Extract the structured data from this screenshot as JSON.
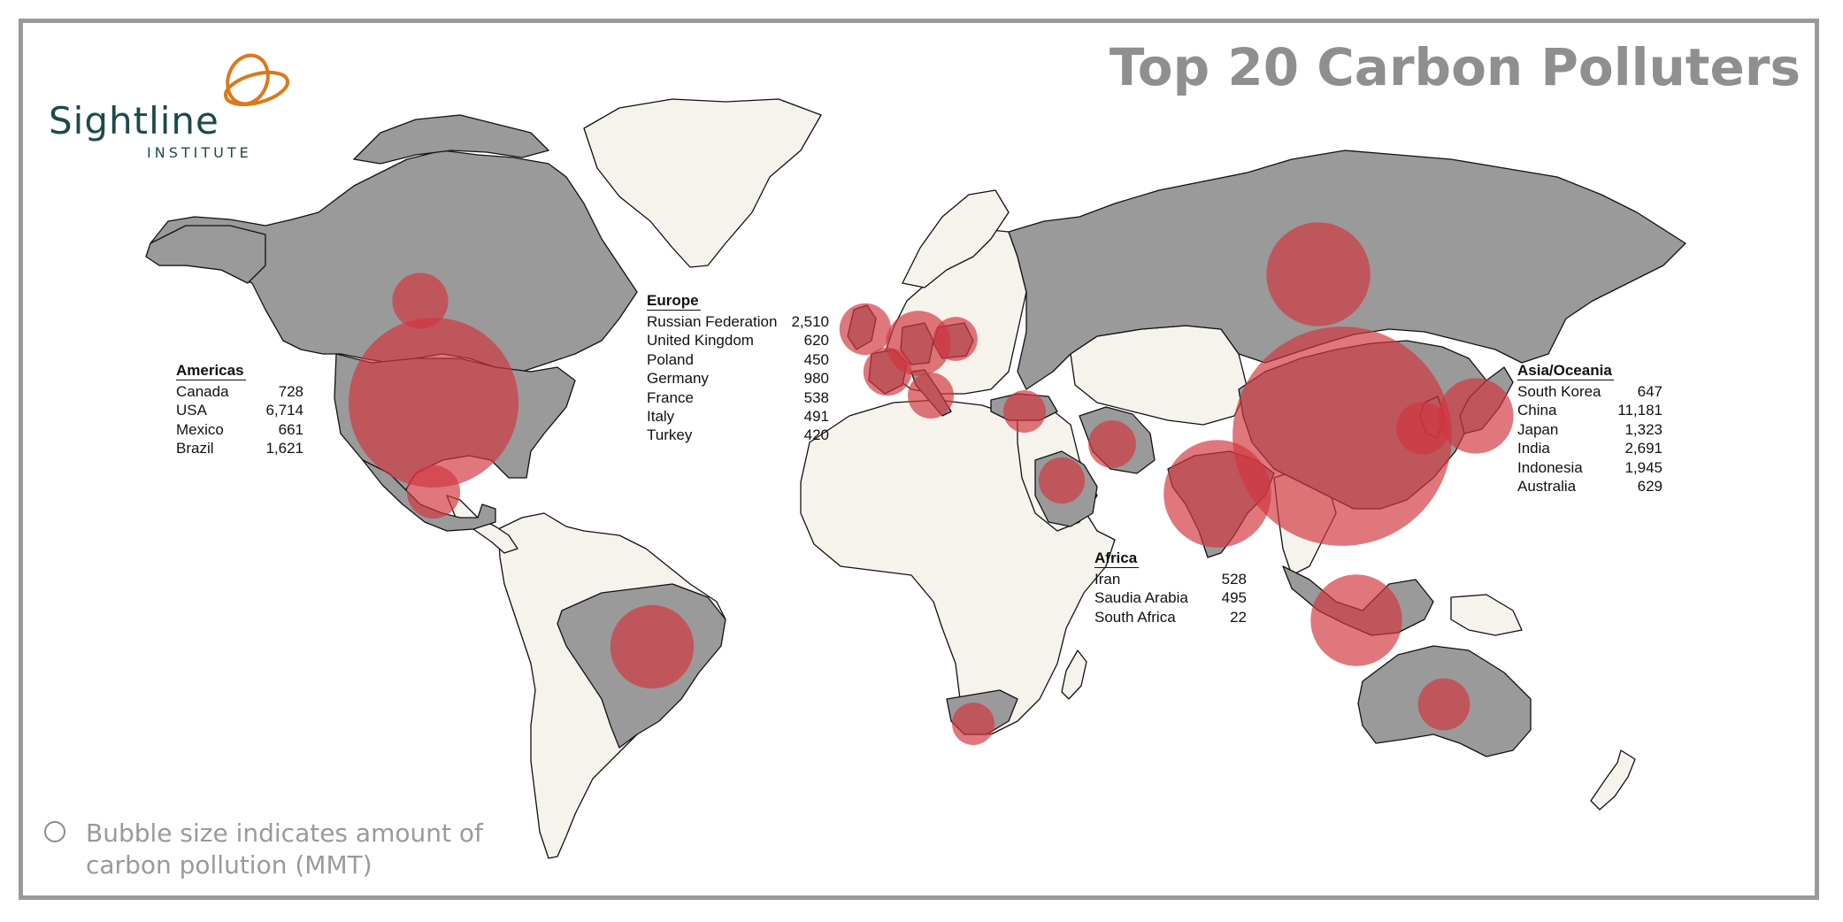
{
  "title": "Top 20 Carbon Polluters",
  "logo": {
    "name": "Sightline",
    "sub": "INSTITUTE",
    "colors": {
      "text": "#1d4a4a",
      "mark": "#d97a1c"
    }
  },
  "legend_text": "Bubble size indicates amount of carbon pollution (MMT)",
  "colors": {
    "polluter_land": "#9a9a9a",
    "other_land": "#f5f3ec",
    "bubble": "#d2373f",
    "border": "#111111"
  },
  "regions": {
    "americas": {
      "title": "Americas",
      "rows": [
        {
          "name": "Canada",
          "value": "728"
        },
        {
          "name": "USA",
          "value": "6,714"
        },
        {
          "name": "Mexico",
          "value": "661"
        },
        {
          "name": "Brazil",
          "value": "1,621"
        }
      ]
    },
    "europe": {
      "title": "Europe",
      "rows": [
        {
          "name": "Russian Federation",
          "value": "2,510"
        },
        {
          "name": "United Kingdom",
          "value": "620"
        },
        {
          "name": "Poland",
          "value": "450"
        },
        {
          "name": "Germany",
          "value": "980"
        },
        {
          "name": "France",
          "value": "538"
        },
        {
          "name": "Italy",
          "value": "491"
        },
        {
          "name": "Turkey",
          "value": "420"
        }
      ]
    },
    "africa": {
      "title": "Africa",
      "rows": [
        {
          "name": "Iran",
          "value": "528"
        },
        {
          "name": "Saudia Arabia",
          "value": "495"
        },
        {
          "name": "South Africa",
          "value": "22"
        }
      ]
    },
    "asia": {
      "title": "Asia/Oceania",
      "rows": [
        {
          "name": "South Korea",
          "value": "647"
        },
        {
          "name": "China",
          "value": "11,181"
        },
        {
          "name": "Japan",
          "value": "1,323"
        },
        {
          "name": "India",
          "value": "2,691"
        },
        {
          "name": "Indonesia",
          "value": "1,945"
        },
        {
          "name": "Australia",
          "value": "629"
        }
      ]
    }
  }
}
